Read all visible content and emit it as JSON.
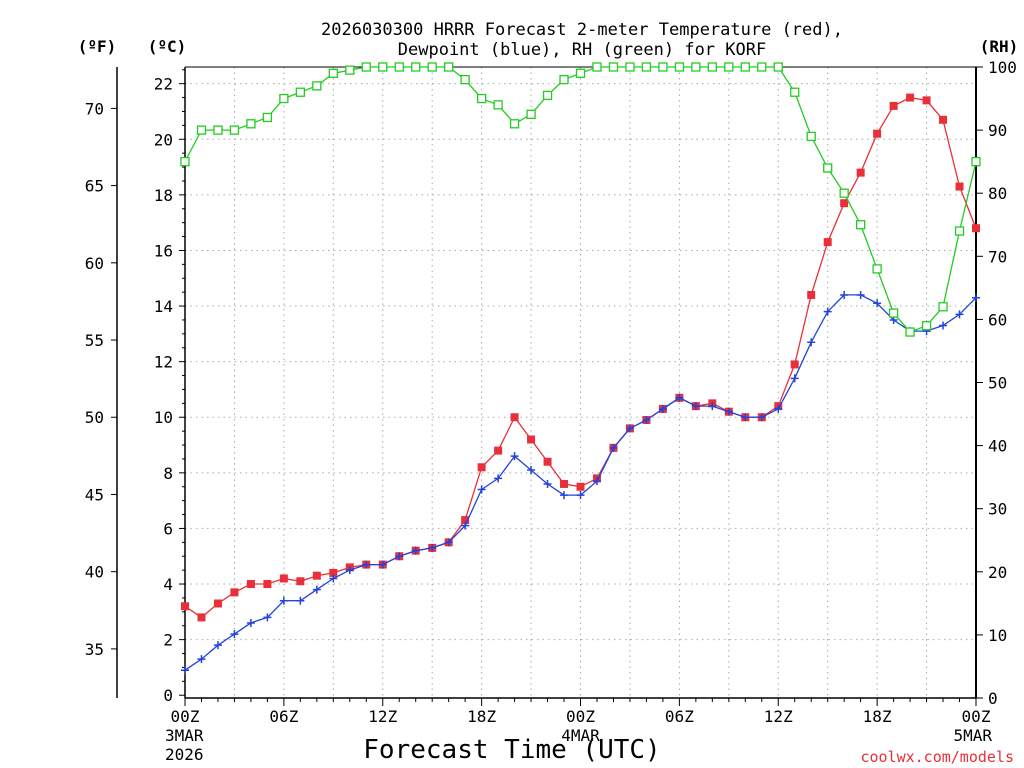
{
  "title_line1": "2026030300 HRRR Forecast 2-meter Temperature (red),",
  "title_line2": "Dewpoint (blue), RH (green) for KORF",
  "unit_f": "(ºF)",
  "unit_c": "(ºC)",
  "unit_rh": "(RH)",
  "xlabel": "Forecast Time (UTC)",
  "credit": "coolwx.com/models",
  "colors": {
    "temp": "#e8303a",
    "dewpoint": "#2244dd",
    "rh": "#22cc22",
    "grid": "#aaaaaa"
  },
  "chart_data": {
    "type": "line",
    "x_unit": "forecast hour from 2026-03-03 00Z",
    "x_ticks": [
      {
        "hour": 0,
        "label": "00Z",
        "date": "3MAR",
        "year": "2026"
      },
      {
        "hour": 6,
        "label": "06Z"
      },
      {
        "hour": 12,
        "label": "12Z"
      },
      {
        "hour": 18,
        "label": "18Z"
      },
      {
        "hour": 24,
        "label": "00Z",
        "date": "4MAR"
      },
      {
        "hour": 30,
        "label": "06Z"
      },
      {
        "hour": 36,
        "label": "12Z"
      },
      {
        "hour": 42,
        "label": "18Z"
      },
      {
        "hour": 48,
        "label": "00Z",
        "date": "5MAR"
      }
    ],
    "xlim": [
      0,
      48
    ],
    "y_celsius": {
      "lim": [
        -0.1,
        22.6
      ],
      "ticks": [
        0,
        2,
        4,
        6,
        8,
        10,
        12,
        14,
        16,
        18,
        20,
        22
      ]
    },
    "y_fahrenheit": {
      "ticks": [
        35,
        40,
        45,
        50,
        55,
        60,
        65,
        70
      ]
    },
    "y_rh": {
      "lim": [
        0,
        100
      ],
      "ticks": [
        0,
        10,
        20,
        30,
        40,
        50,
        60,
        70,
        80,
        90,
        100
      ]
    },
    "grid": true,
    "series": [
      {
        "name": "Temperature (red)",
        "axis": "celsius",
        "marker": "filled-square",
        "values": [
          3.2,
          2.8,
          3.3,
          3.7,
          4.0,
          4.0,
          4.2,
          4.1,
          4.3,
          4.4,
          4.6,
          4.7,
          4.7,
          5.0,
          5.2,
          5.3,
          5.5,
          6.3,
          8.2,
          8.8,
          10.0,
          9.2,
          8.4,
          7.6,
          7.5,
          7.8,
          8.9,
          9.6,
          9.9,
          10.3,
          10.7,
          10.4,
          10.5,
          10.2,
          10.0,
          10.0,
          10.4,
          11.9,
          14.4,
          16.3,
          17.7,
          18.8,
          20.2,
          21.2,
          21.5,
          21.4,
          20.7,
          18.3,
          16.8
        ]
      },
      {
        "name": "Dewpoint (blue)",
        "axis": "celsius",
        "marker": "plus",
        "values": [
          0.9,
          1.3,
          1.8,
          2.2,
          2.6,
          2.8,
          3.4,
          3.4,
          3.8,
          4.2,
          4.5,
          4.7,
          4.7,
          5.0,
          5.2,
          5.3,
          5.5,
          6.1,
          7.4,
          7.8,
          8.6,
          8.1,
          7.6,
          7.2,
          7.2,
          7.7,
          8.9,
          9.6,
          9.9,
          10.3,
          10.7,
          10.4,
          10.4,
          10.2,
          10.0,
          10.0,
          10.3,
          11.4,
          12.7,
          13.8,
          14.4,
          14.4,
          14.1,
          13.5,
          13.1,
          13.1,
          13.3,
          13.7,
          14.3
        ]
      },
      {
        "name": "RH (green)",
        "axis": "rh",
        "marker": "open-square",
        "values": [
          85,
          90,
          90,
          90,
          91,
          92,
          95,
          96,
          97,
          99,
          99.5,
          100,
          100,
          100,
          100,
          100,
          100,
          98,
          95,
          94,
          91,
          92.5,
          95.5,
          98,
          99,
          100,
          100,
          100,
          100,
          100,
          100,
          100,
          100,
          100,
          100,
          100,
          100,
          96,
          89,
          84,
          80,
          75,
          68,
          61,
          58,
          59,
          62,
          74,
          85
        ]
      }
    ]
  }
}
